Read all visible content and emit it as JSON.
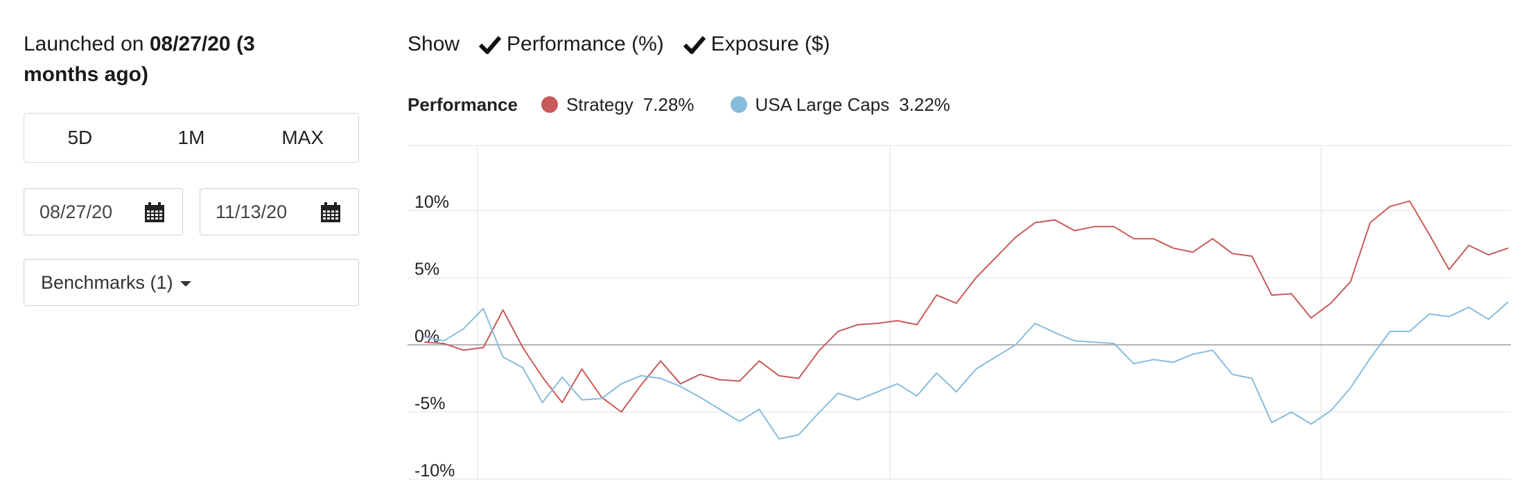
{
  "launch": {
    "prefix": "Launched on ",
    "date_bold": "08/27/20 (3 months ago)"
  },
  "range_buttons": [
    "5D",
    "1M",
    "MAX"
  ],
  "date_start": {
    "value": "08/27/20"
  },
  "date_end": {
    "value": "11/13/20"
  },
  "benchmarks": {
    "label": "Benchmarks (1)"
  },
  "show": {
    "label": "Show",
    "toggles": [
      {
        "label": "Performance (%)",
        "checked": true
      },
      {
        "label": "Exposure ($)",
        "checked": true
      }
    ]
  },
  "legend": {
    "title": "Performance",
    "items": [
      {
        "name": "Strategy",
        "value": "7.28%",
        "color": "#c85a5a"
      },
      {
        "name": "USA Large Caps",
        "value": "3.22%",
        "color": "#86bcdc"
      }
    ]
  },
  "chart_data": {
    "type": "line",
    "y_ticks": [
      "10%",
      "5%",
      "0%",
      "-5%",
      "-10%"
    ],
    "y_tick_values": [
      10,
      5,
      0,
      -5,
      -10
    ],
    "ylim": [
      -10,
      15
    ],
    "grid": true,
    "series": [
      {
        "name": "Strategy",
        "color": "#c85a5a",
        "values": [
          0.2,
          0.1,
          -0.4,
          -0.2,
          2.6,
          -0.2,
          -2.4,
          -4.3,
          -1.8,
          -3.9,
          -5.0,
          -3.0,
          -1.2,
          -2.9,
          -2.2,
          -2.6,
          -2.7,
          -1.2,
          -2.3,
          -2.5,
          -0.5,
          1.0,
          1.5,
          1.6,
          1.8,
          1.5,
          3.7,
          3.1,
          5.0,
          6.5,
          8.0,
          9.1,
          9.3,
          8.5,
          8.8,
          8.8,
          7.9,
          7.9,
          7.2,
          6.9,
          7.9,
          6.8,
          6.6,
          3.7,
          3.8,
          2.0,
          3.1,
          4.7,
          9.1,
          10.3,
          10.7,
          8.2,
          5.6,
          7.4,
          6.7,
          7.2
        ]
      },
      {
        "name": "USA Large Caps",
        "color": "#86bcdc",
        "values": [
          0.6,
          0.3,
          1.2,
          2.7,
          -0.9,
          -1.7,
          -4.3,
          -2.4,
          -4.1,
          -4.0,
          -2.9,
          -2.3,
          -2.5,
          -3.1,
          -3.9,
          -4.8,
          -5.7,
          -4.8,
          -7.0,
          -6.7,
          -5.1,
          -3.6,
          -4.1,
          -3.5,
          -2.9,
          -3.8,
          -2.1,
          -3.5,
          -1.8,
          -0.9,
          0.0,
          1.6,
          0.9,
          0.3,
          0.2,
          0.1,
          -1.4,
          -1.1,
          -1.3,
          -0.7,
          -0.4,
          -2.2,
          -2.5,
          -5.8,
          -5.0,
          -5.9,
          -4.9,
          -3.2,
          -1.0,
          1.0,
          1.0,
          2.3,
          2.1,
          2.8,
          1.9,
          3.2
        ]
      }
    ]
  }
}
